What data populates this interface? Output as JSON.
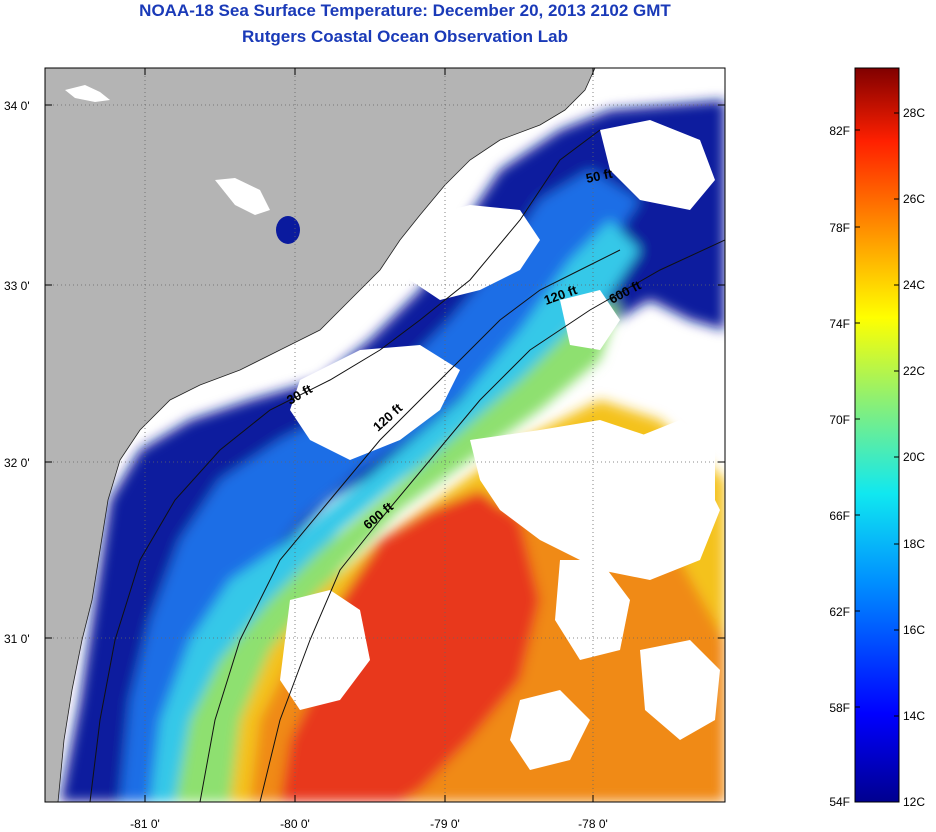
{
  "title": "NOAA-18 Sea Surface Temperature:  December 20, 2013 2102 GMT",
  "subtitle": "Rutgers Coastal Ocean Observation Lab",
  "axes": {
    "lat_labels": [
      "34 0'",
      "33 0'",
      "32 0'",
      "31 0'"
    ],
    "lon_labels": [
      "-81 0'",
      "-80 0'",
      "-79 0'",
      "-78 0'"
    ]
  },
  "contours": {
    "c50": "50 ft",
    "c120a": "120 ft",
    "c120b": "120 ft",
    "c600a": "600 ft",
    "c600b": "600 ft",
    "c30": "30 ft"
  },
  "colorbar": {
    "fahrenheit": [
      "82F",
      "78F",
      "74F",
      "70F",
      "66F",
      "62F",
      "58F",
      "54F"
    ],
    "celsius": [
      "28C",
      "26C",
      "24C",
      "22C",
      "20C",
      "18C",
      "16C",
      "14C",
      "12C"
    ]
  },
  "colors": {
    "land": "#b4b4b4",
    "cloud": "#ffffff",
    "cold": "#0a1a9e",
    "cool": "#1e6ee6",
    "mid": "#35c8e8",
    "mild": "#8ee070",
    "warm_yellow": "#f4c21c",
    "warm_orange": "#f08a18",
    "hot": "#e8381a",
    "title": "#1a3ab8"
  }
}
